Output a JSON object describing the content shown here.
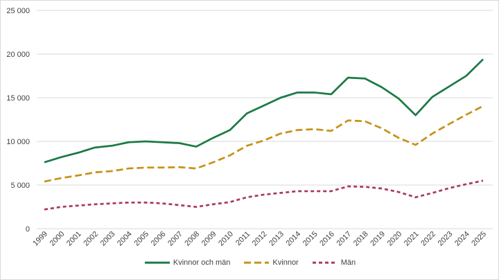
{
  "chart_data": {
    "type": "line",
    "title": "",
    "xlabel": "",
    "ylabel": "",
    "grid": "horizontal-only",
    "legend_position": "bottom-center",
    "ylim": [
      0,
      25000
    ],
    "ytick_interval": 5000,
    "yticks": [
      {
        "value": 0,
        "label": "0"
      },
      {
        "value": 5000,
        "label": "5 000"
      },
      {
        "value": 10000,
        "label": "10 000"
      },
      {
        "value": 15000,
        "label": "15 000"
      },
      {
        "value": 20000,
        "label": "20 000"
      },
      {
        "value": 25000,
        "label": "25 000"
      }
    ],
    "x_labels": [
      "1999",
      "2000",
      "2001",
      "2002",
      "2003",
      "2004",
      "2005",
      "2006",
      "2007",
      "2008",
      "2009",
      "2010",
      "2011",
      "2012",
      "2013",
      "2014",
      "2015",
      "2016",
      "2017",
      "2018",
      "2019",
      "2020",
      "2021",
      "2022",
      "2023",
      "2024",
      "2025"
    ],
    "series": [
      {
        "name": "Kvinnor och män",
        "id": "kvinnor-och-man",
        "color": "#1b7a46",
        "dash": "solid",
        "values": [
          7600,
          8200,
          8700,
          9300,
          9500,
          9900,
          10000,
          9900,
          9800,
          9400,
          10400,
          11300,
          13200,
          14100,
          15000,
          15600,
          15600,
          15400,
          17300,
          17200,
          16200,
          14900,
          13000,
          15100,
          16300,
          17500,
          19400
        ]
      },
      {
        "name": "Kvinnor",
        "id": "kvinnor",
        "color": "#c79217",
        "dash": "long",
        "values": [
          5400,
          5800,
          6100,
          6450,
          6600,
          6900,
          7000,
          7000,
          7050,
          6900,
          7600,
          8400,
          9500,
          10100,
          10900,
          11300,
          11400,
          11200,
          12400,
          12300,
          11500,
          10400,
          9600,
          10900,
          12000,
          13050,
          14050
        ]
      },
      {
        "name": "Män",
        "id": "man",
        "color": "#a93a63",
        "dash": "short",
        "values": [
          2200,
          2500,
          2650,
          2800,
          2900,
          3000,
          3000,
          2900,
          2700,
          2500,
          2800,
          3050,
          3600,
          3900,
          4100,
          4300,
          4300,
          4300,
          4850,
          4800,
          4600,
          4200,
          3600,
          4100,
          4650,
          5100,
          5500
        ]
      }
    ],
    "gridline_color": "#d9d9d9",
    "text_color": "#404040",
    "background_color": "#ffffff"
  }
}
